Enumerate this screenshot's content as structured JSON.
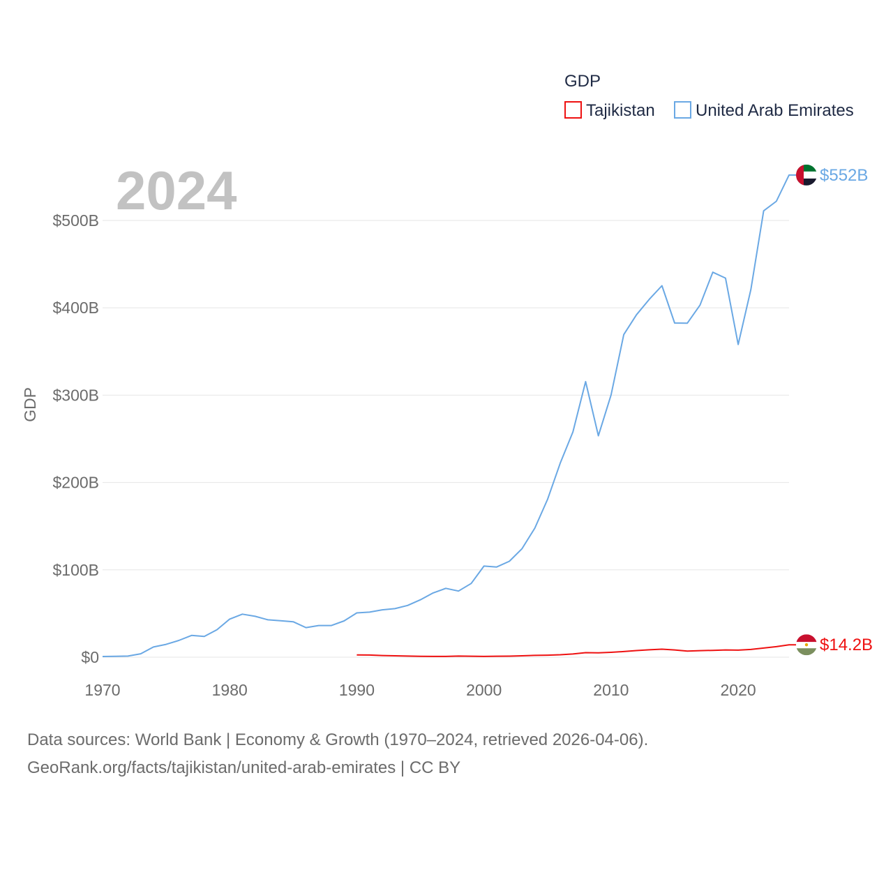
{
  "chart_data": {
    "type": "line",
    "title": "GDP",
    "year_display": "2024",
    "ylabel": "GDP",
    "xlabel": "",
    "xlim": [
      1970,
      2024
    ],
    "ylim": [
      0,
      552
    ],
    "x_ticks": [
      1970,
      1980,
      1990,
      2000,
      2010,
      2020
    ],
    "x_tick_labels": [
      "1970",
      "1980",
      "1990",
      "2000",
      "2010",
      "2020"
    ],
    "y_ticks": [
      0,
      100,
      200,
      300,
      400,
      500
    ],
    "y_tick_labels": [
      "$0",
      "$100B",
      "$200B",
      "$300B",
      "$400B",
      "$500B"
    ],
    "value_unit": "billion USD",
    "grid": true,
    "legend_position": "top-right",
    "series": [
      {
        "name": "Tajikistan",
        "color": "#ee1111",
        "end_label": "$14.2B",
        "flag": "tajikistan-flag",
        "x": [
          1990,
          1991,
          1992,
          1993,
          1994,
          1995,
          1996,
          1997,
          1998,
          1999,
          2000,
          2001,
          2002,
          2003,
          2004,
          2005,
          2006,
          2007,
          2008,
          2009,
          2010,
          2011,
          2012,
          2013,
          2014,
          2015,
          2016,
          2017,
          2018,
          2019,
          2020,
          2021,
          2022,
          2023,
          2024
        ],
        "values": [
          2.6,
          2.5,
          1.9,
          1.6,
          1.3,
          1.0,
          0.9,
          0.9,
          1.3,
          1.1,
          0.9,
          1.1,
          1.2,
          1.6,
          2.1,
          2.3,
          2.8,
          3.7,
          5.2,
          5.0,
          5.6,
          6.5,
          7.6,
          8.5,
          9.2,
          8.3,
          7.0,
          7.5,
          7.8,
          8.3,
          8.1,
          8.9,
          10.5,
          12.1,
          14.2
        ]
      },
      {
        "name": "United Arab Emirates",
        "color": "#6aa8e4",
        "end_label": "$552B",
        "flag": "uae-flag",
        "x": [
          1970,
          1971,
          1972,
          1973,
          1974,
          1975,
          1976,
          1977,
          1978,
          1979,
          1980,
          1981,
          1982,
          1983,
          1984,
          1985,
          1986,
          1987,
          1988,
          1989,
          1990,
          1991,
          1992,
          1993,
          1994,
          1995,
          1996,
          1997,
          1998,
          1999,
          2000,
          2001,
          2002,
          2003,
          2004,
          2005,
          2006,
          2007,
          2008,
          2009,
          2010,
          2011,
          2012,
          2013,
          2014,
          2015,
          2016,
          2017,
          2018,
          2019,
          2020,
          2021,
          2022,
          2023,
          2024
        ],
        "values": [
          0.8,
          1.0,
          1.3,
          3.9,
          11.7,
          14.7,
          19.2,
          24.9,
          23.8,
          31.5,
          43.6,
          49.3,
          46.8,
          42.8,
          41.8,
          40.6,
          33.9,
          36.3,
          36.3,
          41.5,
          50.7,
          51.6,
          54.2,
          55.6,
          59.3,
          65.7,
          73.6,
          78.8,
          75.7,
          84.4,
          104.3,
          103.3,
          109.8,
          124.3,
          147.8,
          180.6,
          222.1,
          257.9,
          315.5,
          253.5,
          300.2,
          369.3,
          392.0,
          409.7,
          425.3,
          382.6,
          382.4,
          403.1,
          440.7,
          434.0,
          358.0,
          421.0,
          511.0,
          522.0,
          552.0
        ]
      }
    ]
  },
  "legend": {
    "title": "GDP",
    "items": [
      {
        "label": "Tajikistan",
        "color": "#ee1111"
      },
      {
        "label": "United Arab Emirates",
        "color": "#6aa8e4"
      }
    ]
  },
  "source": {
    "line1": "Data sources: World Bank | Economy & Growth (1970–2024, retrieved 2026-04-06).",
    "line2": "GeoRank.org/facts/tajikistan/united-arab-emirates | CC BY"
  }
}
